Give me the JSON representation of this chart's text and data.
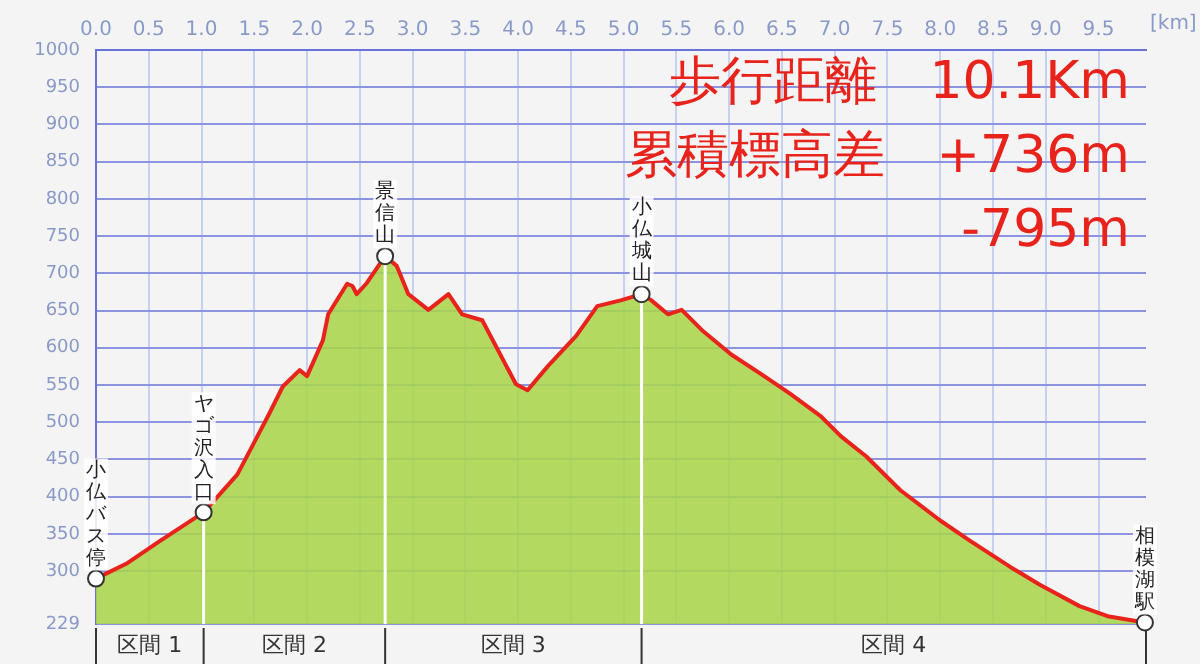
{
  "chart_data": {
    "type": "area",
    "xlabel": "[km]",
    "x": [
      0,
      0.3,
      0.6,
      1.02,
      1.34,
      1.64,
      1.77,
      1.93,
      2.0,
      2.15,
      2.2,
      2.38,
      2.43,
      2.47,
      2.56,
      2.74,
      2.85,
      2.96,
      3.15,
      3.34,
      3.47,
      3.66,
      3.79,
      3.98,
      4.09,
      4.28,
      4.55,
      4.75,
      4.98,
      5.17,
      5.26,
      5.42,
      5.55,
      5.74,
      6.02,
      6.3,
      6.58,
      6.87,
      7.06,
      7.3,
      7.62,
      8.0,
      8.28,
      8.66,
      8.94,
      9.32,
      9.6,
      9.94
    ],
    "series": [
      {
        "color": "#a8d44a",
        "values": [
          290,
          311,
          340,
          379,
          430,
          511,
          548,
          570,
          562,
          610,
          645,
          686,
          683,
          672,
          686,
          723,
          710,
          672,
          651,
          672,
          645,
          637,
          602,
          551,
          543,
          575,
          616,
          656,
          664,
          672,
          664,
          645,
          651,
          624,
          591,
          565,
          538,
          508,
          481,
          454,
          409,
          368,
          341,
          306,
          282,
          253,
          239,
          231
        ]
      }
    ],
    "xlim": [
      0,
      9.95
    ],
    "xticks": [
      {
        "value": 0,
        "label": "0.0"
      },
      {
        "value": 0.5,
        "label": "0.5"
      },
      {
        "value": 1,
        "label": "1.0"
      },
      {
        "value": 1.5,
        "label": "1.5"
      },
      {
        "value": 2,
        "label": "2.0"
      },
      {
        "value": 2.5,
        "label": "2.5"
      },
      {
        "value": 3,
        "label": "3.0"
      },
      {
        "value": 3.5,
        "label": "3.5"
      },
      {
        "value": 4,
        "label": "4.0"
      },
      {
        "value": 4.5,
        "label": "4.5"
      },
      {
        "value": 5,
        "label": "5.0"
      },
      {
        "value": 5.5,
        "label": "5.5"
      },
      {
        "value": 6,
        "label": "6.0"
      },
      {
        "value": 6.5,
        "label": "6.5"
      },
      {
        "value": 7,
        "label": "7.0"
      },
      {
        "value": 7.5,
        "label": "7.5"
      },
      {
        "value": 8,
        "label": "8.0"
      },
      {
        "value": 8.5,
        "label": "8.5"
      },
      {
        "value": 9,
        "label": "9.0"
      },
      {
        "value": 9.5,
        "label": "9.5"
      }
    ],
    "ylim": [
      229,
      1000
    ],
    "yticks": [
      229,
      300,
      350,
      400,
      450,
      500,
      550,
      600,
      650,
      700,
      750,
      800,
      850,
      900,
      950,
      1000
    ],
    "grid": true,
    "legend": false,
    "marker": "none",
    "ref_lines": [
      {
        "axis": "x",
        "value": 1.02,
        "color": "#ffffff"
      },
      {
        "axis": "x",
        "value": 2.74,
        "color": "#ffffff"
      },
      {
        "axis": "x",
        "value": 5.17,
        "color": "#ffffff"
      }
    ],
    "annotations": [
      "区間 1",
      "区間 2",
      "区間 3",
      "区間 4",
      {
        "text": "小仏バス停",
        "x": 0,
        "y": 290
      },
      {
        "text": "ヤゴ沢入口",
        "x": 1.02,
        "y": 379
      },
      {
        "text": "景信山",
        "x": 2.74,
        "y": 723
      },
      {
        "text": "小仏城山",
        "x": 5.17,
        "y": 672
      },
      {
        "text": "相模湖駅",
        "x": 9.94,
        "y": 231
      },
      "歩行距離　10.1Km",
      "累積標高差　+736m",
      "-795m"
    ]
  }
}
